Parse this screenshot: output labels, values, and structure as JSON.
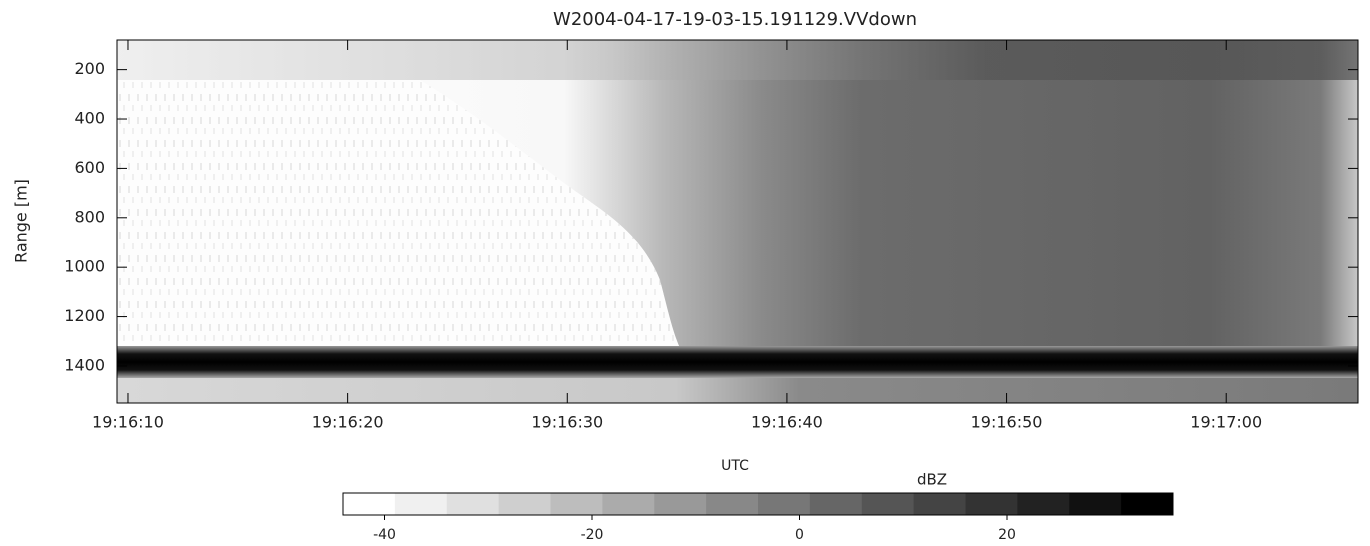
{
  "chart_data": {
    "type": "heatmap",
    "title": "W2004-04-17-19-03-15.191129.VVdown",
    "x_label": "UTC",
    "y_label": "Range [m]",
    "xlim": [
      69369.5,
      69426
    ],
    "xticks": [
      {
        "value": 69370,
        "label": "19:16:10"
      },
      {
        "value": 69380,
        "label": "19:16:20"
      },
      {
        "value": 69390,
        "label": "19:16:30"
      },
      {
        "value": 69400,
        "label": "19:16:40"
      },
      {
        "value": 69410,
        "label": "19:16:50"
      },
      {
        "value": 69420,
        "label": "19:17:00"
      }
    ],
    "ylim": [
      80,
      1550
    ],
    "y_inverted": true,
    "yticks": [
      200,
      400,
      600,
      800,
      1000,
      1200,
      1400
    ],
    "colorbar": {
      "label": "dBZ",
      "lim": [
        -44,
        36
      ],
      "ticks": [
        -40,
        -20,
        0,
        20
      ],
      "colors": [
        "#ffffff",
        "#f0f0f0",
        "#e0e0e0",
        "#cfcfcf",
        "#bdbdbd",
        "#ababab",
        "#999999",
        "#888888",
        "#777777",
        "#666666",
        "#555555",
        "#444444",
        "#333333",
        "#222222",
        "#111111",
        "#000000"
      ]
    }
  }
}
